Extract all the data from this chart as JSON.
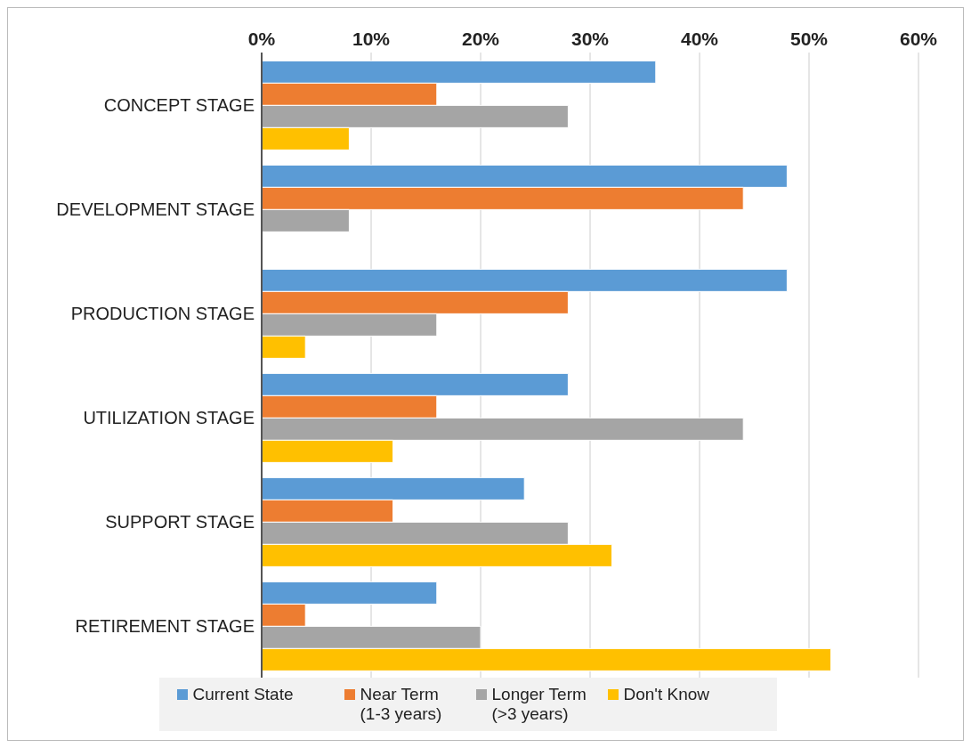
{
  "chart_data": {
    "type": "bar",
    "orientation": "horizontal",
    "categories": [
      "CONCEPT STAGE",
      "DEVELOPMENT STAGE",
      "PRODUCTION STAGE",
      "UTILIZATION STAGE",
      "SUPPORT STAGE",
      "RETIREMENT STAGE"
    ],
    "series": [
      {
        "name": "Current State",
        "color": "#5b9bd5",
        "values": [
          36,
          48,
          48,
          28,
          24,
          16
        ]
      },
      {
        "name": "Near Term (1-3 years)",
        "color": "#ed7d31",
        "values": [
          16,
          44,
          28,
          16,
          12,
          4
        ]
      },
      {
        "name": "Longer Term (>3 years)",
        "color": "#a5a5a5",
        "values": [
          28,
          8,
          16,
          44,
          28,
          20
        ]
      },
      {
        "name": "Don't Know",
        "color": "#ffc000",
        "values": [
          8,
          0,
          4,
          12,
          32,
          52
        ]
      }
    ],
    "xlim": [
      0,
      60
    ],
    "xticks": [
      {
        "value": 0,
        "label": "0%"
      },
      {
        "value": 10,
        "label": "10%"
      },
      {
        "value": 20,
        "label": "20%"
      },
      {
        "value": 30,
        "label": "30%"
      },
      {
        "value": 40,
        "label": "40%"
      },
      {
        "value": 50,
        "label": "50%"
      },
      {
        "value": 60,
        "label": "60%"
      }
    ],
    "grid": "x",
    "legend": "bottom"
  }
}
